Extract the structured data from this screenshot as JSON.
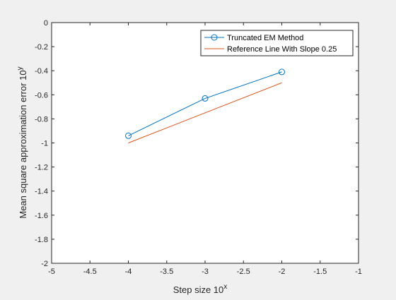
{
  "chart_data": {
    "type": "line",
    "title": "",
    "xlabel": "Step size 10",
    "xlabel_sup": "x",
    "ylabel": "Mean square approximation error 10",
    "ylabel_sup": "y",
    "xlim": [
      -5,
      -1
    ],
    "ylim": [
      -2,
      0
    ],
    "xticks": [
      -5,
      -4.5,
      -4,
      -3.5,
      -3,
      -2.5,
      -2,
      -1.5,
      -1
    ],
    "yticks": [
      0,
      -0.2,
      -0.4,
      -0.6,
      -0.8,
      -1,
      -1.2,
      -1.4,
      -1.6,
      -1.8,
      -2
    ],
    "xtick_labels": [
      "-5",
      "-4.5",
      "-4",
      "-3.5",
      "-3",
      "-2.5",
      "-2",
      "-1.5",
      "-1"
    ],
    "ytick_labels": [
      "0",
      "-0.2",
      "-0.4",
      "-0.6",
      "-0.8",
      "-1",
      "-1.2",
      "-1.4",
      "-1.6",
      "-1.8",
      "-2"
    ],
    "grid": false,
    "legend_position": "top-right",
    "series": [
      {
        "name": "Truncated EM Method",
        "color": "#0072bd",
        "marker": "circle",
        "x": [
          -4,
          -3,
          -2
        ],
        "y": [
          -0.94,
          -0.63,
          -0.41
        ]
      },
      {
        "name": "Reference Line With Slope 0.25",
        "color": "#d95319",
        "marker": "none",
        "x": [
          -4,
          -2
        ],
        "y": [
          -1.0,
          -0.5
        ]
      }
    ]
  }
}
